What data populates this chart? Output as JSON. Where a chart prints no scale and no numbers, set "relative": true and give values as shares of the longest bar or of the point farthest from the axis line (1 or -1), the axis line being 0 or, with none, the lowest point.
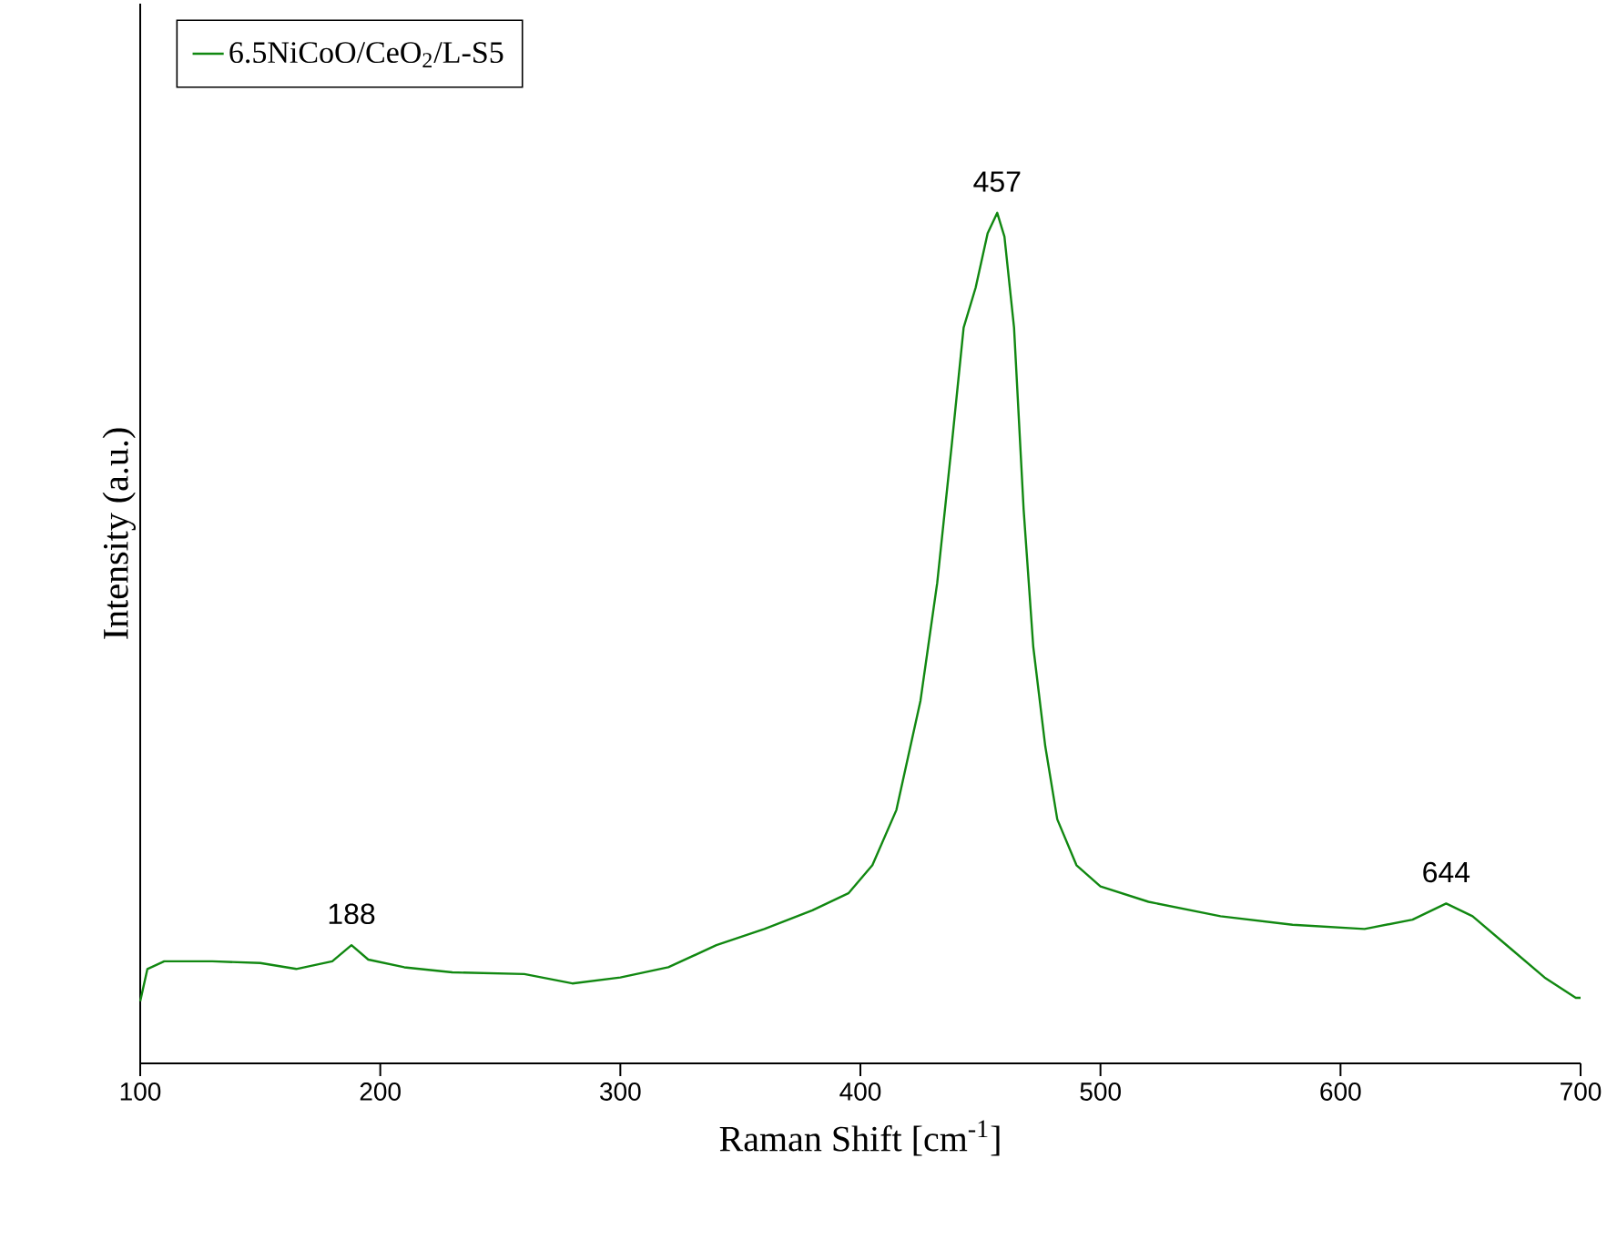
{
  "chart_data": {
    "type": "line",
    "relative": true,
    "xlabel": "Raman Shift [cm$^{-1}$]",
    "ylabel": "Intensity (a.u.)",
    "x": [
      100,
      103,
      110,
      130,
      150,
      165,
      180,
      188,
      195,
      210,
      230,
      260,
      280,
      300,
      320,
      340,
      360,
      380,
      395,
      405,
      415,
      425,
      432,
      438,
      443,
      448,
      453,
      457,
      460,
      464,
      468,
      472,
      477,
      482,
      490,
      500,
      520,
      550,
      580,
      610,
      630,
      644,
      655,
      670,
      685,
      698,
      700
    ],
    "xlim": [
      100,
      700
    ],
    "xticks": [
      100,
      200,
      300,
      400,
      500,
      600,
      700
    ],
    "series": [
      {
        "name": "6.5NiCoO/CeO$_{2}$/L-S5",
        "color": "#118811",
        "values": [
          0.073,
          0.111,
          0.12,
          0.12,
          0.118,
          0.111,
          0.12,
          0.139,
          0.122,
          0.113,
          0.107,
          0.105,
          0.094,
          0.101,
          0.113,
          0.139,
          0.158,
          0.18,
          0.2,
          0.233,
          0.298,
          0.426,
          0.565,
          0.726,
          0.865,
          0.912,
          0.976,
          1,
          0.972,
          0.865,
          0.651,
          0.49,
          0.373,
          0.287,
          0.233,
          0.208,
          0.19,
          0.173,
          0.163,
          0.158,
          0.169,
          0.188,
          0.173,
          0.137,
          0.101,
          0.077,
          0.077
        ]
      }
    ],
    "annotations": [
      {
        "text": "188",
        "x": 188,
        "y": 0.139
      },
      {
        "text": "457",
        "x": 457,
        "y": 1
      },
      {
        "text": "644",
        "x": 644,
        "y": 0.188
      }
    ],
    "legend": "top left",
    "marker": "none",
    "line_style": "solid",
    "grid": false
  }
}
